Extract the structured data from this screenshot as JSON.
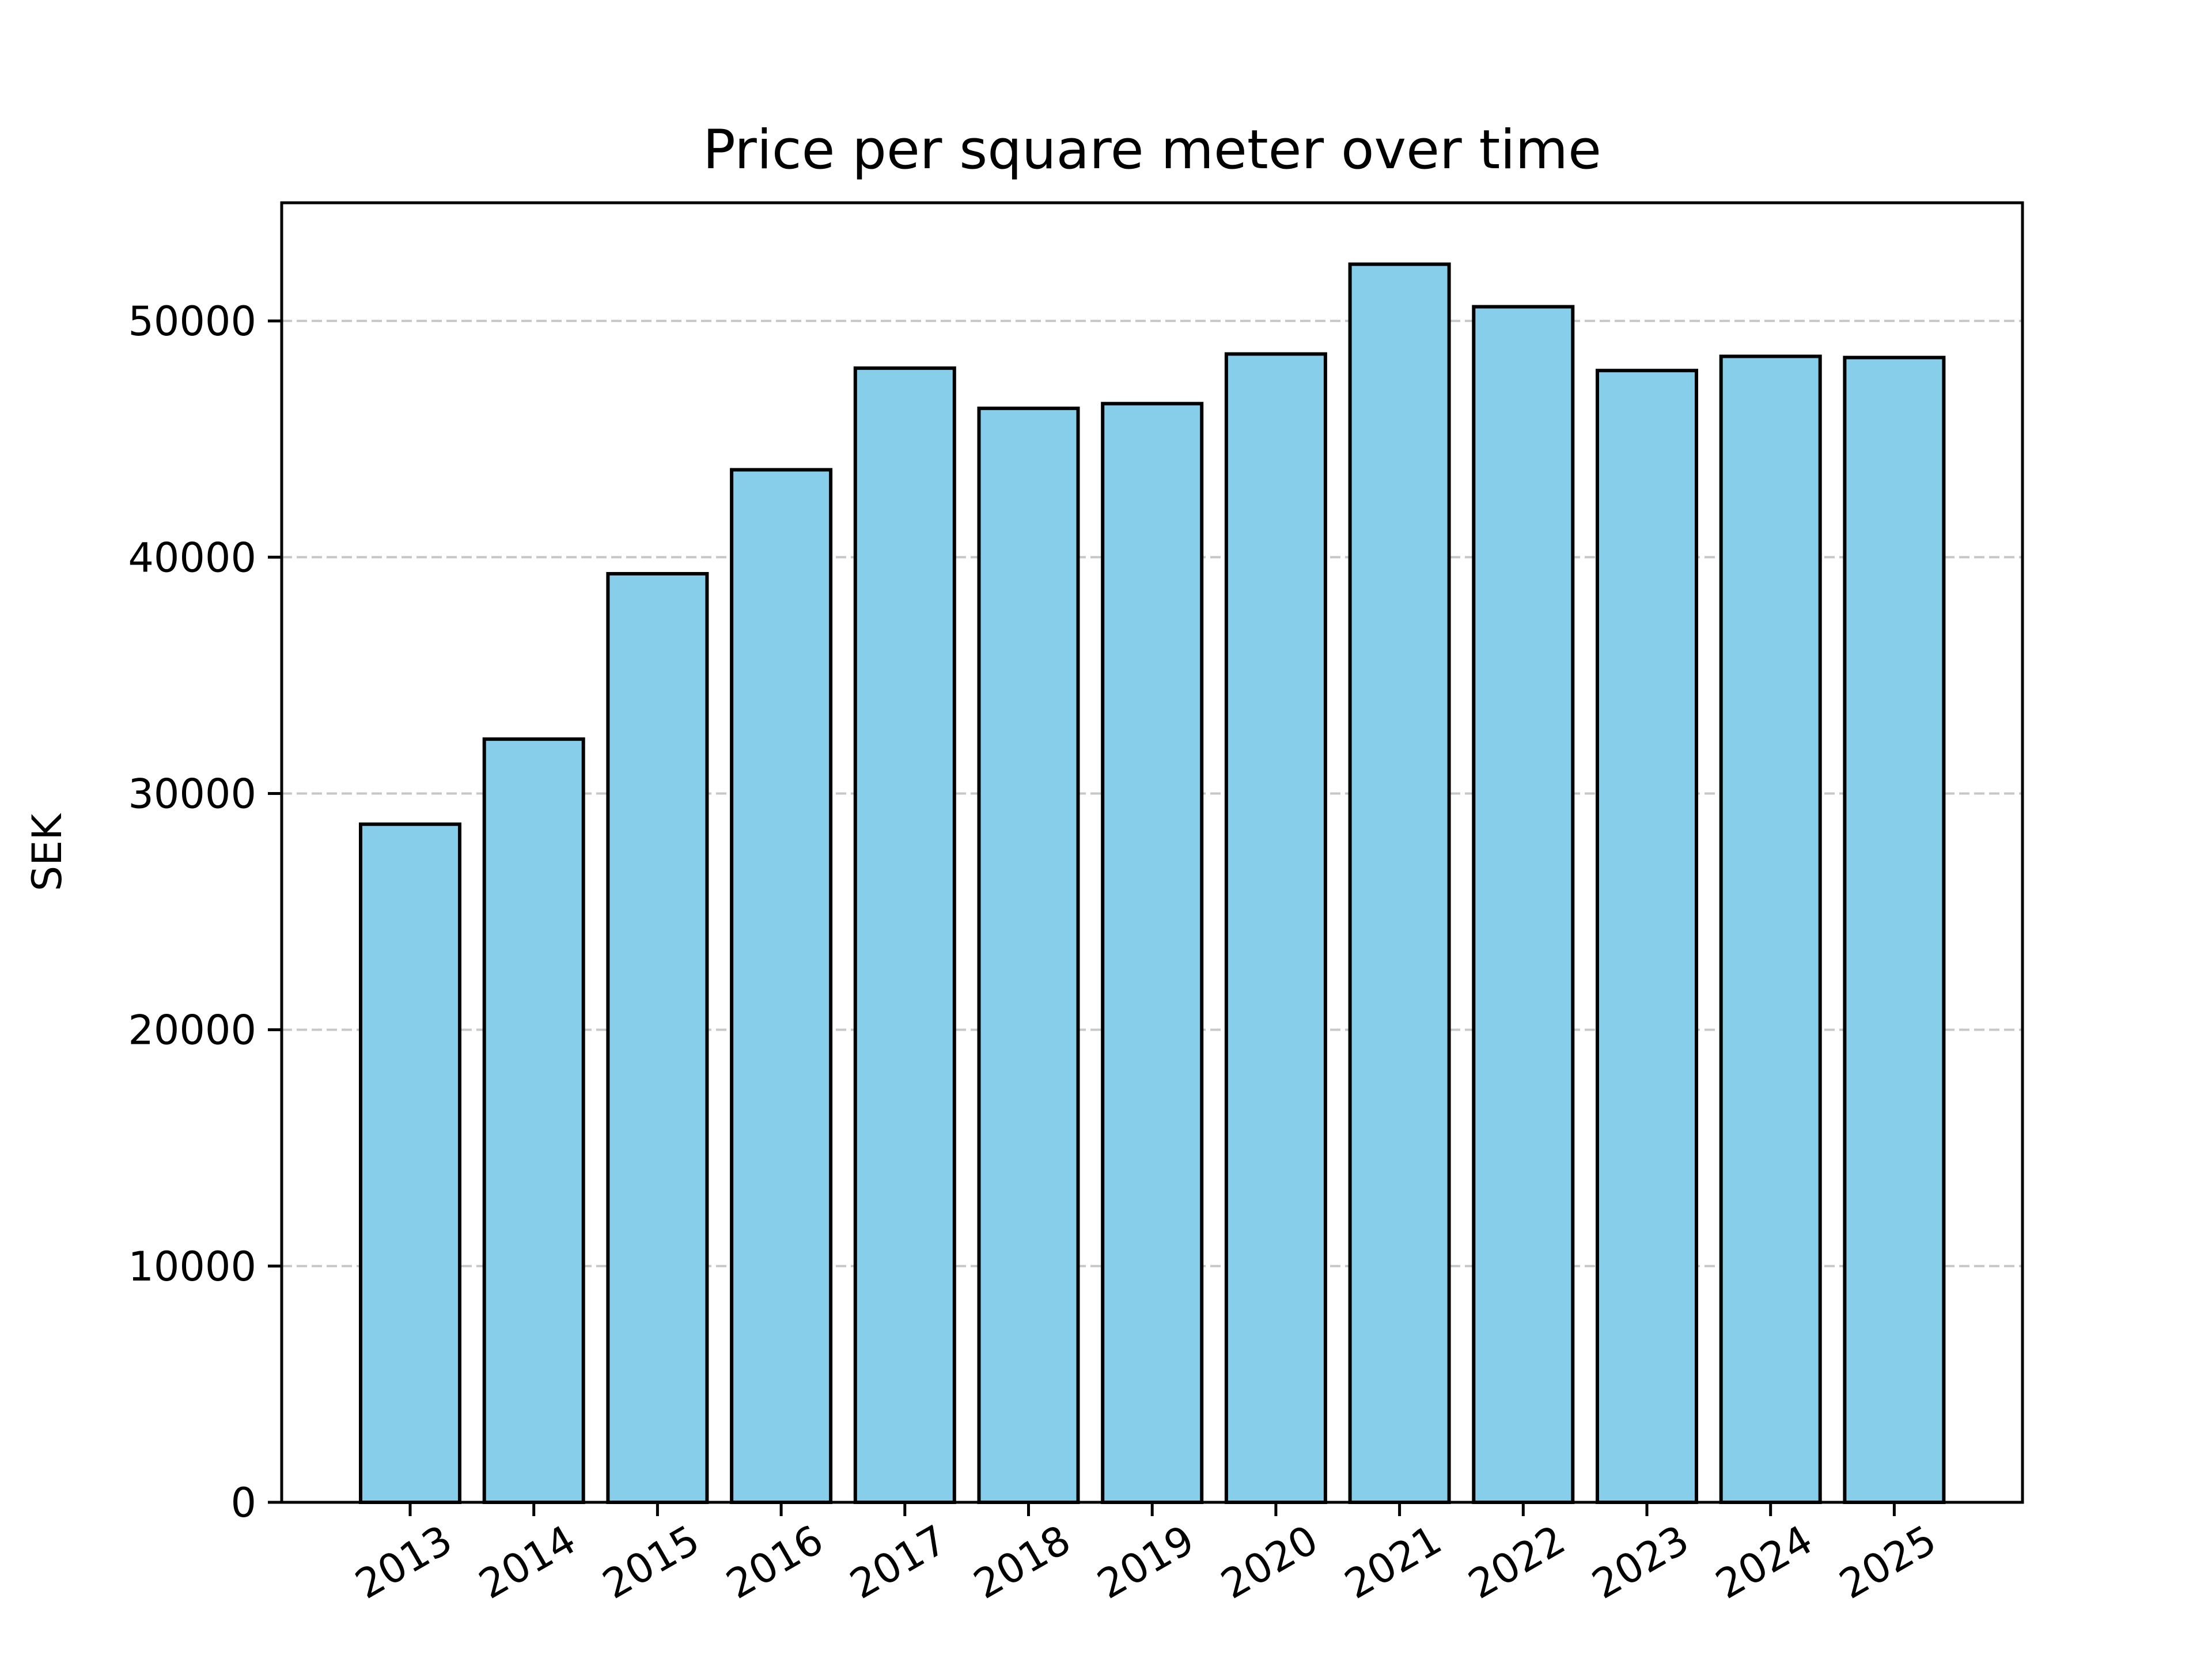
{
  "chart_data": {
    "type": "bar",
    "title": "Price per square meter over time",
    "xlabel": "",
    "ylabel": "SEK",
    "categories": [
      "2013",
      "2014",
      "2015",
      "2016",
      "2017",
      "2018",
      "2019",
      "2020",
      "2021",
      "2022",
      "2023",
      "2024",
      "2025"
    ],
    "values": [
      28700,
      32300,
      39300,
      43700,
      48000,
      46300,
      46500,
      48600,
      52400,
      50600,
      47900,
      48500,
      48450
    ],
    "ylim": [
      0,
      55000
    ],
    "yticks": [
      0,
      10000,
      20000,
      30000,
      40000,
      50000
    ],
    "ytick_labels": [
      "0",
      "10000",
      "20000",
      "30000",
      "40000",
      "50000"
    ],
    "grid": "y-dashed",
    "legend": "none",
    "colors": {
      "bar_fill": "#87ceeb",
      "bar_edge": "#000000",
      "grid": "#c8c8c8",
      "axis": "#000000"
    }
  }
}
